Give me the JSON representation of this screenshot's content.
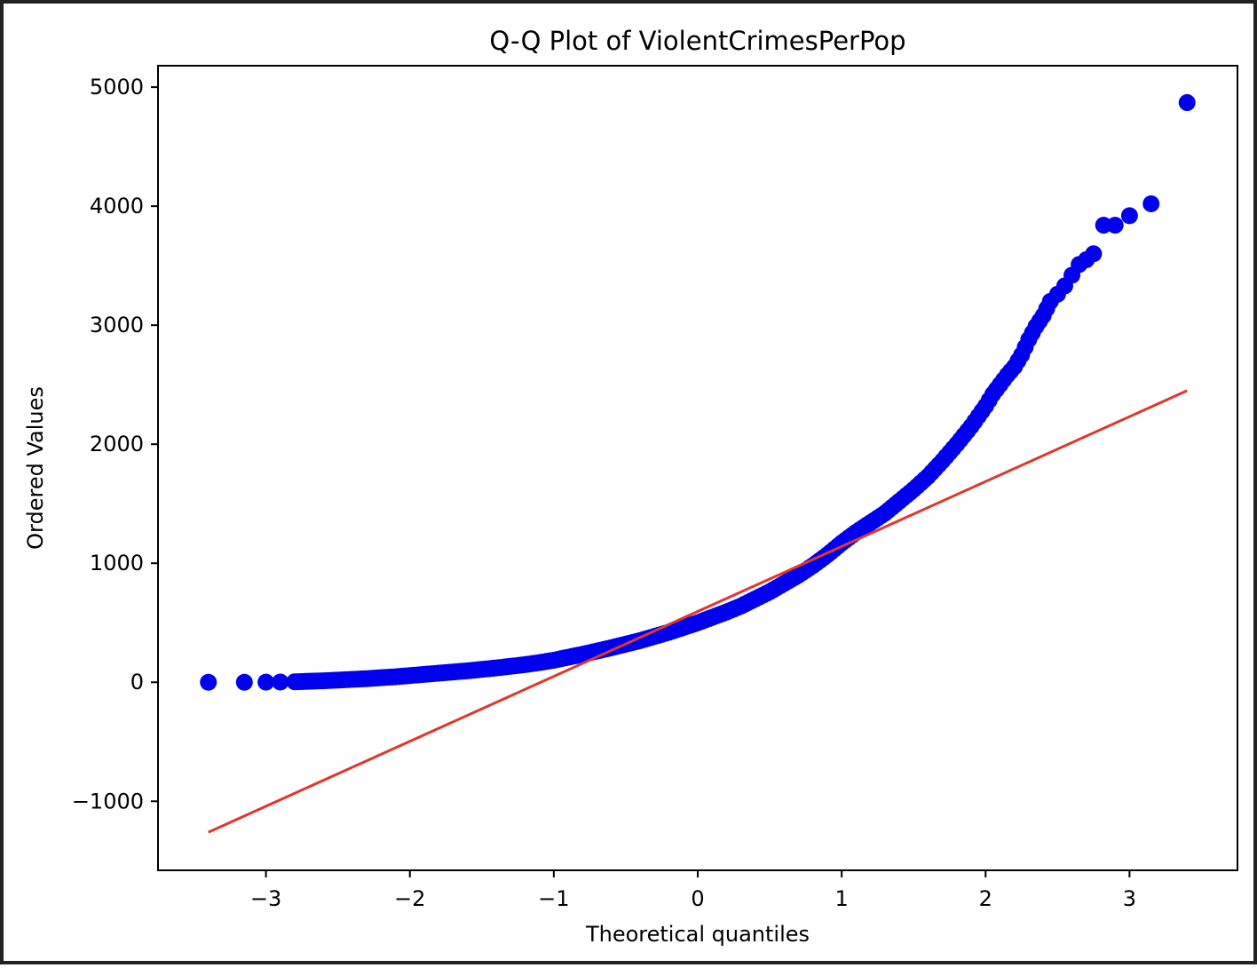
{
  "chart_data": {
    "type": "scatter",
    "title": "Q-Q Plot of ViolentCrimesPerPop",
    "xlabel": "Theoretical quantiles",
    "ylabel": "Ordered Values",
    "xlim": [
      -3.75,
      3.75
    ],
    "ylim": [
      -1580,
      5180
    ],
    "xticks": [
      -3,
      -2,
      -1,
      0,
      1,
      2,
      3
    ],
    "xtick_labels": [
      "−3",
      "−2",
      "−1",
      "0",
      "1",
      "2",
      "3"
    ],
    "yticks": [
      -1000,
      0,
      1000,
      2000,
      3000,
      4000,
      5000
    ],
    "ytick_labels": [
      "−1000",
      "0",
      "1000",
      "2000",
      "3000",
      "4000",
      "5000"
    ],
    "grid": false,
    "legend": "none",
    "colors": {
      "points": "#0000ee",
      "fit_line": "#e0372b",
      "axes": "#000000"
    },
    "series": [
      {
        "type": "scatter",
        "x": [
          -3.4,
          -3.15,
          -3.0,
          -2.9,
          -2.8,
          -2.7,
          -2.6,
          -2.5,
          -2.4,
          -2.3,
          -2.2,
          -2.1,
          -2.0,
          -1.9,
          -1.8,
          -1.7,
          -1.6,
          -1.5,
          -1.4,
          -1.3,
          -1.2,
          -1.1,
          -1.0,
          -0.9,
          -0.8,
          -0.7,
          -0.6,
          -0.5,
          -0.4,
          -0.3,
          -0.2,
          -0.1,
          0.0,
          0.1,
          0.2,
          0.3,
          0.4,
          0.5,
          0.6,
          0.7,
          0.8,
          0.9,
          1.0,
          1.1,
          1.2,
          1.3,
          1.4,
          1.5,
          1.6,
          1.7,
          1.8,
          1.9,
          2.0,
          2.05,
          2.1,
          2.15,
          2.2,
          2.25,
          2.3,
          2.35,
          2.4,
          2.45,
          2.5,
          2.55,
          2.6,
          2.65,
          2.7,
          2.75,
          2.82,
          2.9,
          3.0,
          3.15,
          3.4
        ],
        "y": [
          0,
          0,
          1,
          2,
          4,
          8,
          12,
          18,
          24,
          30,
          38,
          46,
          56,
          66,
          76,
          86,
          96,
          108,
          120,
          134,
          148,
          165,
          185,
          210,
          235,
          262,
          290,
          320,
          350,
          385,
          420,
          460,
          500,
          545,
          590,
          640,
          700,
          760,
          830,
          900,
          980,
          1070,
          1170,
          1260,
          1340,
          1420,
          1520,
          1620,
          1730,
          1860,
          2000,
          2150,
          2320,
          2420,
          2500,
          2580,
          2650,
          2750,
          2880,
          2990,
          3080,
          3200,
          3260,
          3330,
          3420,
          3510,
          3550,
          3600,
          3840,
          3840,
          3920,
          4020,
          4870
        ]
      },
      {
        "type": "line",
        "x": [
          -3.4,
          3.4
        ],
        "y": [
          -1260,
          2450
        ]
      }
    ]
  }
}
